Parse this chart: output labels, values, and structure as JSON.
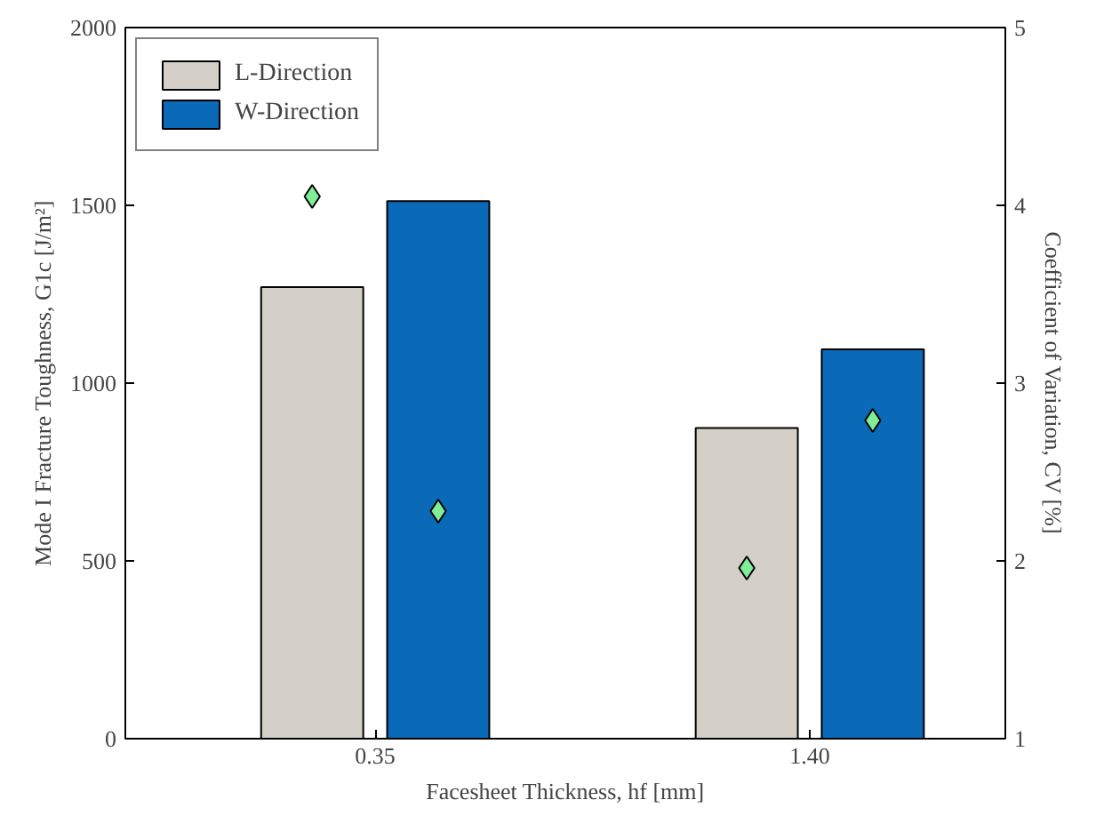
{
  "chart_data": {
    "type": "bar",
    "categories": [
      "0.35",
      "1.40"
    ],
    "xlabel": "Facesheet Thickness, hf [mm]",
    "ylabel": "Mode I Fracture Toughness, G1c [J/m²]",
    "y2label": "Coefficient of Variation, CV [%]",
    "ylim": [
      0,
      2000
    ],
    "yticks": [
      0,
      500,
      1000,
      1500,
      2000
    ],
    "y2lim": [
      1,
      5
    ],
    "y2ticks": [
      1,
      2,
      3,
      4,
      5
    ],
    "series": [
      {
        "name": "L-Direction",
        "color": "#d4d0c8",
        "values": [
          1270,
          874
        ]
      },
      {
        "name": "W-Direction",
        "color": "#0a6ab8",
        "values": [
          1512,
          1095
        ]
      },
      {
        "type": "scatter",
        "axis": "y2",
        "color": "#80ee98",
        "x": [
          "0.35",
          "1.40"
        ],
        "values": [
          4.05,
          1.96
        ]
      },
      {
        "type": "scatter",
        "axis": "y2",
        "color": "#80ee98",
        "x": [
          "0.35",
          "1.40"
        ],
        "values": [
          2.28,
          2.79
        ]
      }
    ],
    "marker": "diamond",
    "legend": "top left",
    "grid": false
  }
}
